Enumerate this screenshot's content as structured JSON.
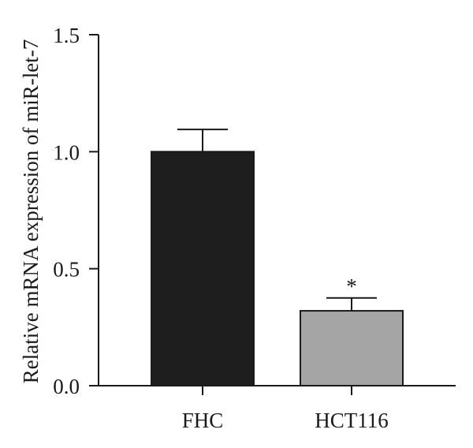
{
  "chart_data": {
    "type": "bar",
    "categories": [
      "FHC",
      "HCT116"
    ],
    "values": [
      1.0,
      0.32
    ],
    "errors": [
      0.095,
      0.055
    ],
    "bar_colors": [
      "#1e1e1e",
      "#a5a5a5"
    ],
    "annotations": [
      "",
      "*"
    ],
    "ylabel": "Relative mRNA expression of miR-let-7",
    "xlabel": "",
    "title": "",
    "ylim": [
      0,
      1.5
    ],
    "yticks": [
      "0.0",
      "0.5",
      "1.0",
      "1.5"
    ],
    "grid": false
  }
}
